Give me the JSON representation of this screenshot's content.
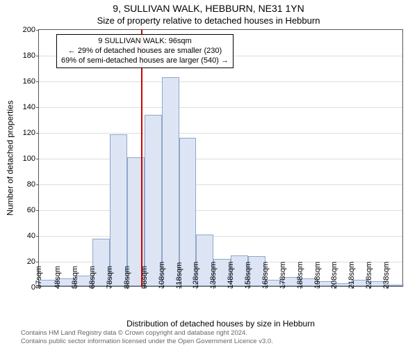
{
  "header": {
    "title": "9, SULLIVAN WALK, HEBBURN, NE31 1YN",
    "subtitle": "Size of property relative to detached houses in Hebburn"
  },
  "chart": {
    "type": "histogram",
    "ylabel": "Number of detached properties",
    "xlabel": "Distribution of detached houses by size in Hebburn",
    "ylim": [
      0,
      200
    ],
    "ytick_step": 20,
    "yticks": [
      0,
      20,
      40,
      60,
      80,
      100,
      120,
      140,
      160,
      180,
      200
    ],
    "xtick_labels": [
      "37sqm",
      "48sqm",
      "58sqm",
      "68sqm",
      "78sqm",
      "88sqm",
      "98sqm",
      "108sqm",
      "118sqm",
      "128sqm",
      "138sqm",
      "148sqm",
      "158sqm",
      "168sqm",
      "178sqm",
      "188sqm",
      "198sqm",
      "208sqm",
      "218sqm",
      "228sqm",
      "238sqm"
    ],
    "bin_left_edges": [
      37,
      48,
      58,
      68,
      78,
      88,
      98,
      108,
      118,
      128,
      138,
      148,
      158,
      168,
      178,
      188,
      198,
      208,
      218,
      228,
      238
    ],
    "bin_right_edge": 248,
    "values": [
      5,
      6,
      8,
      37,
      118,
      100,
      133,
      162,
      115,
      40,
      21,
      24,
      23,
      5,
      7,
      6,
      4,
      2,
      5,
      4,
      0
    ],
    "bar_fill": "#dde5f4",
    "bar_edge": "#8fa6cc",
    "background_color": "#ffffff",
    "grid_color": "#dddddd",
    "border_color": "#555555",
    "refline": {
      "x": 96,
      "color": "#cc0000"
    },
    "annotation": {
      "lines": [
        "9 SULLIVAN WALK: 96sqm",
        "← 29% of detached houses are smaller (230)",
        "69% of semi-detached houses are larger (540) →"
      ],
      "border_color": "#000000",
      "font_size": 11
    }
  },
  "footer": {
    "line1": "Contains HM Land Registry data © Crown copyright and database right 2024.",
    "line2": "Contains public sector information licensed under the Open Government Licence v3.0."
  }
}
